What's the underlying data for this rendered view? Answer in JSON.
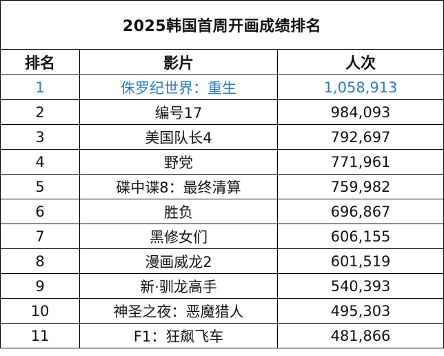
{
  "title": "2025韩国首周开画成绩排名",
  "headers": {
    "rank": "排名",
    "film": "影片",
    "admissions": "人次"
  },
  "rows": [
    {
      "rank": "1",
      "film": "侏罗纪世界：重生",
      "admissions": "1,058,913"
    },
    {
      "rank": "2",
      "film": "编号17",
      "admissions": "984,093"
    },
    {
      "rank": "3",
      "film": "美国队长4",
      "admissions": "792,697"
    },
    {
      "rank": "4",
      "film": "野党",
      "admissions": "771,961"
    },
    {
      "rank": "5",
      "film": "碟中谍8：最终清算",
      "admissions": "759,982"
    },
    {
      "rank": "6",
      "film": "胜负",
      "admissions": "696,867"
    },
    {
      "rank": "7",
      "film": "黑修女们",
      "admissions": "606,155"
    },
    {
      "rank": "8",
      "film": "漫画威龙2",
      "admissions": "601,519"
    },
    {
      "rank": "9",
      "film": "新·驯龙高手",
      "admissions": "540,393"
    },
    {
      "rank": "10",
      "film": "神圣之夜：恶魔猎人",
      "admissions": "495,303"
    },
    {
      "rank": "11",
      "film": "F1：狂飙飞车",
      "admissions": "481,866"
    }
  ],
  "colors": {
    "highlight_text": "#2e7cc0",
    "border": "#000000",
    "text": "#111111"
  }
}
